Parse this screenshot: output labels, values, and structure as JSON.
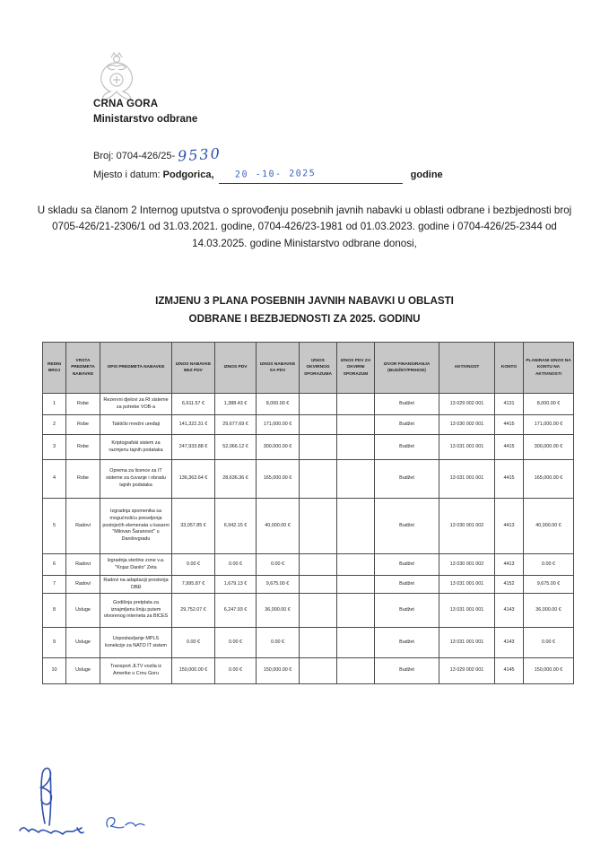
{
  "document": {
    "org": {
      "country": "CRNA GORA",
      "ministry": "Ministarstvo odbrane"
    },
    "ref": {
      "broj_label": "Broj: 0704-426/25-",
      "broj_handwritten": "9530",
      "mjesto_label": "Mjesto i datum:",
      "city": "Podgorica,",
      "date_stamp": "20 -10- 2025",
      "godine": "godine"
    },
    "intro": "U skladu sa članom 2 Internog uputstva o sprovođenju posebnih javnih nabavki u oblasti odbrane i bezbjednosti broj 0705-426/21-2306/1 od 31.03.2021. godine, 0704-426/23-1981 od 01.03.2023. godine i 0704-426/25-2344 od 14.03.2025. godine  Ministarstvo odbrane donosi,",
    "title_line1": "IZMJENU 3 PLANA POSEBNIH JAVNIH NABAVKI U OBLASTI",
    "title_line2": "ODBRANE I BEZBJEDNOSTI ZA 2025. GODINU"
  },
  "table": {
    "headers": [
      "REDNI BROJ",
      "VRSTA PREDMETA NABAVKE",
      "OPIS PREDMETA NABAVKE",
      "IZNOS NABAVKE BEZ PDV",
      "IZNOS PDV",
      "IZNOS NABAVKE SA PDV",
      "IZNOS OKVIRNOG SPORAZUMA",
      "IZNOS PDV ZA OKVIRNI SPORAZUM",
      "IZVOR FINANSIRANJA (BUDŽET/PRIHOD)",
      "AKTIVNOST",
      "KONTO",
      "PLANIRANI IZNOS NA KONTU NA AKTIVNOSTI"
    ],
    "rows": [
      [
        "1",
        "Robe",
        "Rezervni djelovi za RI sisteme za potrebe VOB-a",
        "6,611.57 €",
        "1,388.43 €",
        "8,000.00 €",
        "",
        "",
        "Budžet",
        "13 029 002 001",
        "4131",
        "8,000.00 €"
      ],
      [
        "2",
        "Robe",
        "Taktički mrežni uređaji",
        "141,322.31 €",
        "29,677.69 €",
        "171,000.00 €",
        "",
        "",
        "Budžet",
        "13 030 002 001",
        "4415",
        "171,000.00 €"
      ],
      [
        "3",
        "Robe",
        "Kriptografski sistem za razmjenu tajnih podataka",
        "247,933.88 €",
        "52,066.12 €",
        "300,000.00 €",
        "",
        "",
        "Budžet",
        "13 031 001 001",
        "4415",
        "300,000.00 €"
      ],
      [
        "4",
        "Robe",
        "Oprema za licence za IT sisteme za čuvanje i obradu tajnih podataka",
        "136,363.64 €",
        "28,636.36 €",
        "165,000.00 €",
        "",
        "",
        "Budžet",
        "13 031 001 001",
        "4415",
        "165,000.00 €"
      ],
      [
        "5",
        "Radovi",
        "Izgradnja spomenika sa mogućnošću preseljenja postojećih elemenata u kasarni \"Milovan Šaranović\" u Danilovgradu",
        "33,057.85 €",
        "6,942.15 €",
        "40,000.00 €",
        "",
        "",
        "Budžet",
        "13 030 001 002",
        "4413",
        "40,000.00 €"
      ],
      [
        "6",
        "Radovi",
        "Izgradnja sterilne zone v.a. \"Knjaz Danilo\" Zeta",
        "0.00 €",
        "0.00 €",
        "0.00 €",
        "",
        "",
        "Budžet",
        "13 030 001 002",
        "4413",
        "0.00 €"
      ],
      [
        "7",
        "Radovi",
        "Radovi na adaptaciji prostorija OBĐ",
        "7,995.87 €",
        "1,679.13 €",
        "9,675.00 €",
        "",
        "",
        "Budžet",
        "13 031 001 001",
        "4152",
        "9,675.00 €"
      ],
      [
        "8",
        "Usluge",
        "Godišnja pretplata za iznajmljenu liniju putem otvorenog interneta za BICES",
        "29,752.07 €",
        "6,247.93 €",
        "36,000.00 €",
        "",
        "",
        "Budžet",
        "13 031 001 001",
        "4143",
        "36,000.00 €"
      ],
      [
        "9",
        "Usluge",
        "Uspostavljanje MPLS konekcije za NATO IT sistem",
        "0.00 €",
        "0.00 €",
        "0.00 €",
        "",
        "",
        "Budžet",
        "13 031 001 001",
        "4143",
        "0.00 €"
      ],
      [
        "10",
        "Usluge",
        "Transport JLTV vozila iz Amerike u Crnu Goru",
        "150,000.00 €",
        "0.00 €",
        "150,000.00 €",
        "",
        "",
        "Budžet",
        "13 029 002 001",
        "4145",
        "150,000.00 €"
      ]
    ]
  }
}
